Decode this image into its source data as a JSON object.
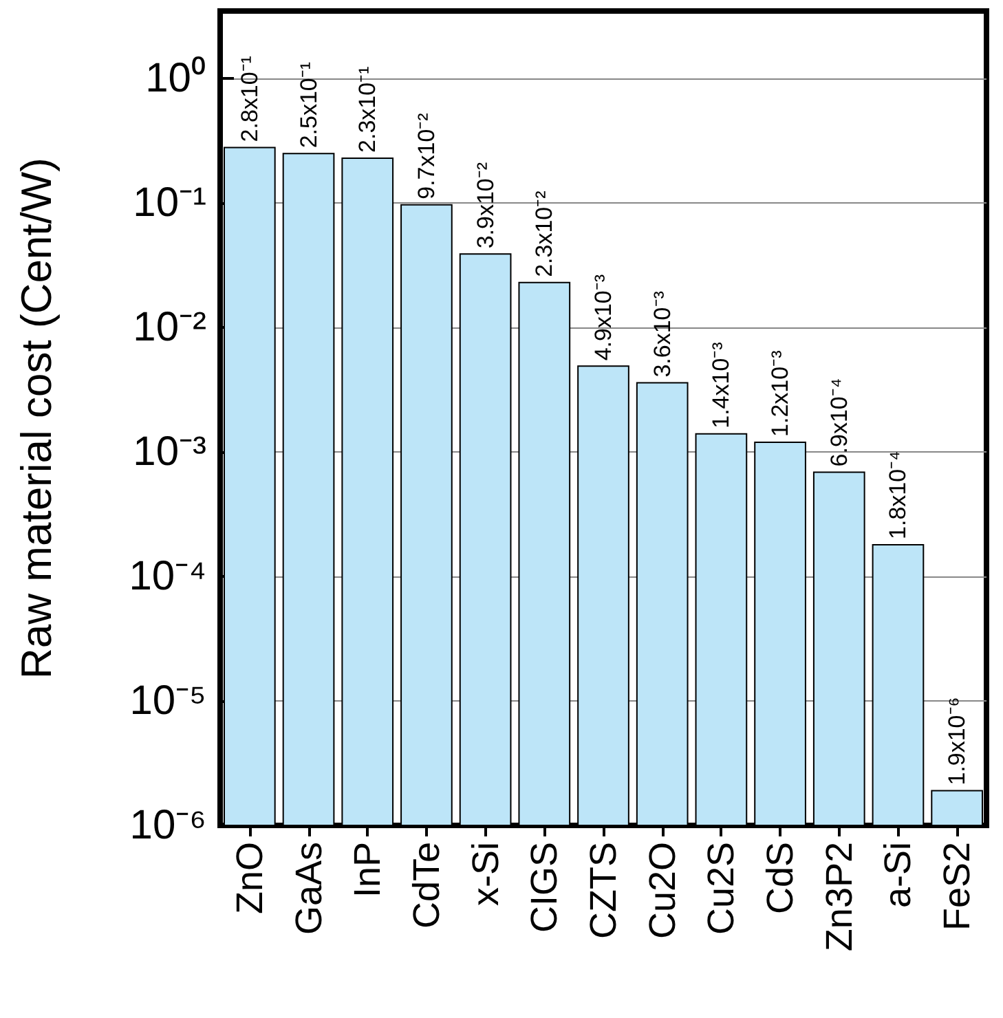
{
  "chart_data": {
    "type": "bar",
    "ylabel": "Raw material cost (Cent/W)",
    "categories": [
      "ZnO",
      "GaAs",
      "InP",
      "CdTe",
      "x-Si",
      "CIGS",
      "CZTS",
      "Cu2O",
      "Cu2S",
      "CdS",
      "Zn3P2",
      "a-Si",
      "FeS2"
    ],
    "values": [
      0.28,
      0.25,
      0.23,
      0.097,
      0.039,
      0.023,
      0.0049,
      0.0036,
      0.0014,
      0.0012,
      0.00069,
      0.00018,
      1.9e-06
    ],
    "value_labels": [
      "2.8x10⁻¹",
      "2.5x10⁻¹",
      "2.3x10⁻¹",
      "9.7x10⁻²",
      "3.9x10⁻²",
      "2.3x10⁻²",
      "4.9x10⁻³",
      "3.6x10⁻³",
      "1.4x10⁻³",
      "1.2x10⁻³",
      "6.9x10⁻⁴",
      "1.8x10⁻⁴",
      "1.9x10⁻⁶"
    ],
    "color": "#bde5f8",
    "log": true,
    "ylim": [
      1e-06,
      3.5
    ],
    "yticks": [
      {
        "value": 1e-06,
        "label": "10⁻⁶"
      },
      {
        "value": 1e-05,
        "label": "10⁻⁵"
      },
      {
        "value": 0.0001,
        "label": "10⁻⁴"
      },
      {
        "value": 0.001,
        "label": "10⁻³"
      },
      {
        "value": 0.01,
        "label": "10⁻²"
      },
      {
        "value": 0.1,
        "label": "10⁻¹"
      },
      {
        "value": 1,
        "label": "10⁰"
      }
    ],
    "grid": "y"
  }
}
